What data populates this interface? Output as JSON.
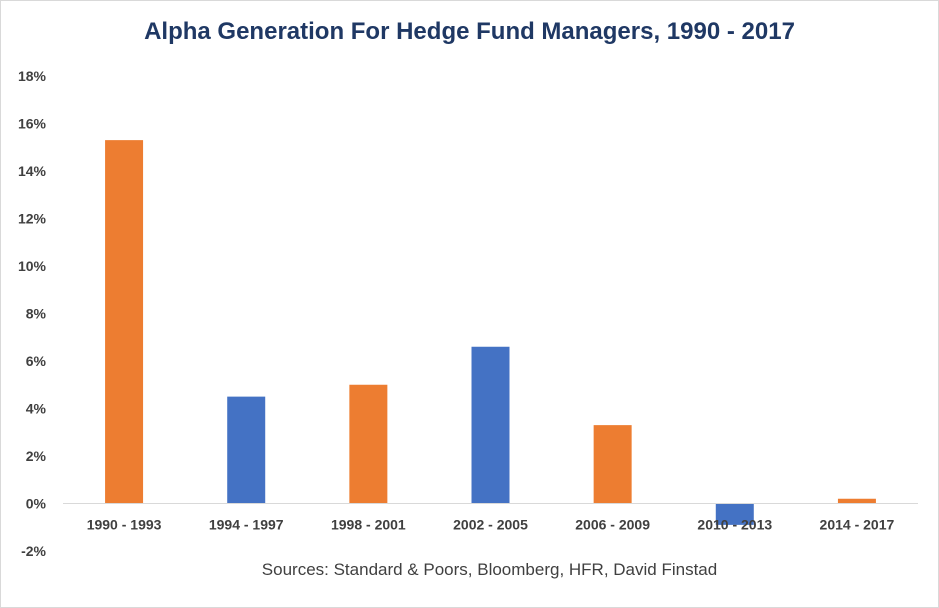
{
  "chart_data": {
    "type": "bar",
    "title": "Alpha Generation For Hedge Fund Managers, 1990 - 2017",
    "source": "Sources: Standard & Poors, Bloomberg, HFR, David Finstad",
    "xlabel": "",
    "ylabel": "",
    "categories": [
      "1990 - 1993",
      "1994 - 1997",
      "1998 - 2001",
      "2002 - 2005",
      "2006 - 2009",
      "2010 - 2013",
      "2014 - 2017"
    ],
    "values": [
      15.3,
      4.5,
      5.0,
      6.6,
      3.3,
      -0.9,
      0.2
    ],
    "bar_colors": [
      "#ed7d31",
      "#4472c4",
      "#ed7d31",
      "#4472c4",
      "#ed7d31",
      "#4472c4",
      "#ed7d31"
    ],
    "ylim": [
      -2,
      18
    ],
    "yticks": [
      -2,
      0,
      2,
      4,
      6,
      8,
      10,
      12,
      14,
      16,
      18
    ],
    "ytick_labels": [
      "-2%",
      "0%",
      "2%",
      "4%",
      "6%",
      "8%",
      "10%",
      "12%",
      "14%",
      "16%",
      "18%"
    ],
    "grid": false,
    "legend": "none"
  }
}
